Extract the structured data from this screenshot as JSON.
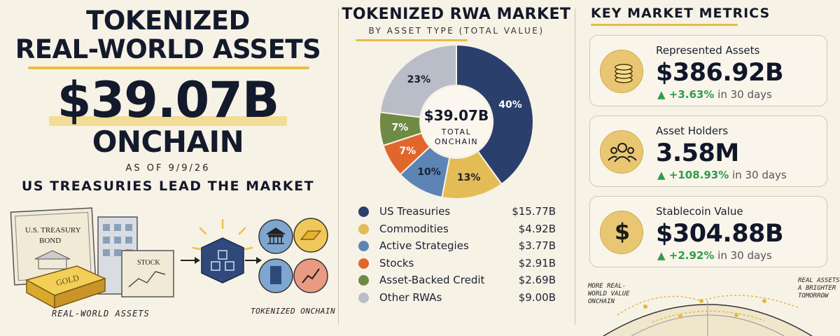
{
  "hero": {
    "title_line1": "TOKENIZED",
    "title_line2": "REAL-WORLD ASSETS",
    "amount": "$39.07B",
    "onchain": "ONCHAIN",
    "as_of": "AS OF 9/9/26",
    "lead": "US TREASURIES LEAD THE MARKET",
    "label_rwa": "REAL-WORLD ASSETS",
    "label_tokenized": "TOKENIZED ONCHAIN",
    "illustration": {
      "bond_text_line1": "U.S. TREASURY",
      "bond_text_line2": "BOND",
      "gold_text": "GOLD",
      "stock_text": "STOCK"
    }
  },
  "market": {
    "title": "TOKENIZED RWA MARKET",
    "subtitle": "BY ASSET TYPE (TOTAL VALUE)",
    "center_value": "$39.07B",
    "center_line1": "TOTAL",
    "center_line2": "ONCHAIN",
    "segments": [
      {
        "label": "US Treasuries",
        "value": "$15.77B",
        "percent": 40,
        "percent_label": "40%",
        "color": "#2b3f6c"
      },
      {
        "label": "Commodities",
        "value": "$4.92B",
        "percent": 13,
        "percent_label": "13%",
        "color": "#e3bc55"
      },
      {
        "label": "Active Strategies",
        "value": "$3.77B",
        "percent": 10,
        "percent_label": "10%",
        "color": "#5c85b5"
      },
      {
        "label": "Stocks",
        "value": "$2.91B",
        "percent": 7,
        "percent_label": "7%",
        "color": "#e0662b"
      },
      {
        "label": "Asset-Backed Credit",
        "value": "$2.69B",
        "percent": 7,
        "percent_label": "7%",
        "color": "#6f8a45"
      },
      {
        "label": "Other RWAs",
        "value": "$9.00B",
        "percent": 23,
        "percent_label": "23%",
        "color": "#b8bdc7"
      }
    ]
  },
  "metrics": {
    "title": "KEY MARKET METRICS",
    "cards": [
      {
        "label": "Represented Assets",
        "value": "$386.92B",
        "change": "▲ +3.63%",
        "period": "in 30 days",
        "icon": "coins-icon"
      },
      {
        "label": "Asset Holders",
        "value": "3.58M",
        "change": "▲ +108.93%",
        "period": "in 30 days",
        "icon": "people-icon"
      },
      {
        "label": "Stablecoin Value",
        "value": "$304.88B",
        "change": "▲ +2.92%",
        "period": "in 30 days",
        "icon": "dollar-icon"
      }
    ],
    "footer_left": "MORE REAL-WORLD VALUE ONCHAIN",
    "footer_right": "REAL ASSETS A BRIGHTER TOMORROW"
  }
}
